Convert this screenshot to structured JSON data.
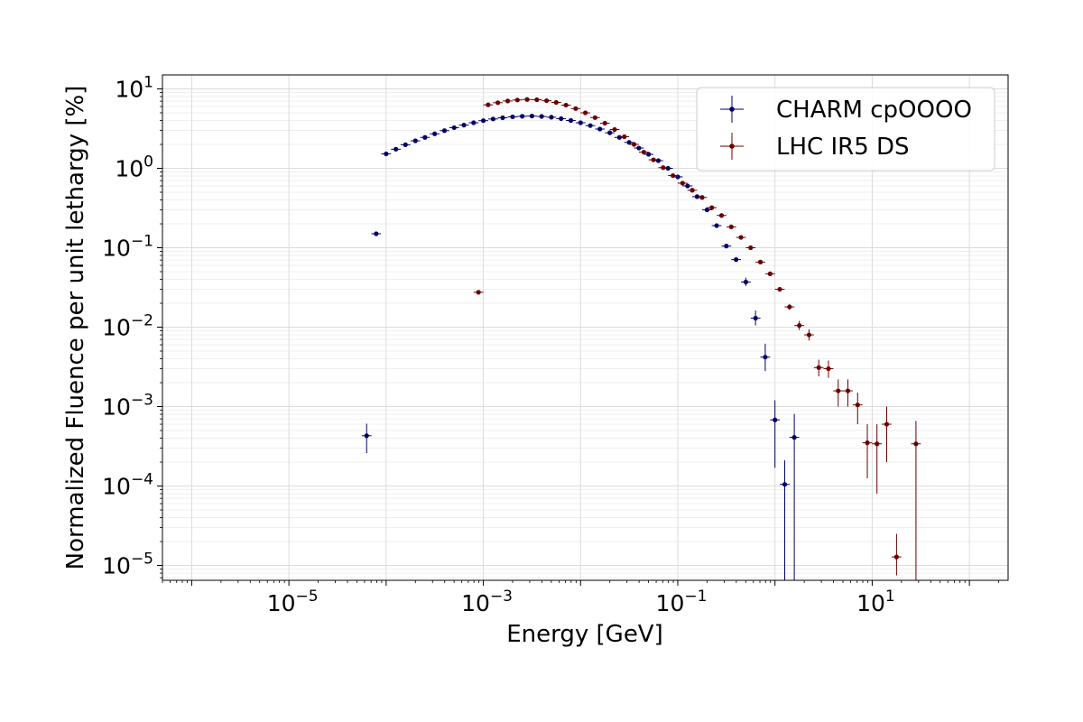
{
  "chart_data": {
    "type": "scatter",
    "title": "",
    "xlabel": "Energy [GeV]",
    "ylabel": "Normalized Fluence per unit lethargy [%]",
    "xscale": "log",
    "yscale": "log",
    "xlim": [
      5e-07,
      250
    ],
    "ylim": [
      6.5e-06,
      15
    ],
    "xticks": [
      {
        "value": 1e-05,
        "mantissa": "10",
        "exp": "−5"
      },
      {
        "value": 0.001,
        "mantissa": "10",
        "exp": "−3"
      },
      {
        "value": 0.1,
        "mantissa": "10",
        "exp": "−1"
      },
      {
        "value": 10,
        "mantissa": "10",
        "exp": "1"
      }
    ],
    "yticks": [
      {
        "value": 1e-05,
        "mantissa": "10",
        "exp": "−5"
      },
      {
        "value": 0.0001,
        "mantissa": "10",
        "exp": "−4"
      },
      {
        "value": 0.001,
        "mantissa": "10",
        "exp": "−3"
      },
      {
        "value": 0.01,
        "mantissa": "10",
        "exp": "−2"
      },
      {
        "value": 0.1,
        "mantissa": "10",
        "exp": "−1"
      },
      {
        "value": 1,
        "mantissa": "10",
        "exp": "0"
      },
      {
        "value": 10,
        "mantissa": "10",
        "exp": "1"
      }
    ],
    "grid": true,
    "legend_position": "top-right",
    "series": [
      {
        "name": "CHARM cpOOOO",
        "color": "#00006b",
        "points": [
          {
            "x": 6.3e-05,
            "y": 0.00043,
            "ylo": 0.00026,
            "yhi": 0.00061
          },
          {
            "x": 7.9e-05,
            "y": 0.15
          },
          {
            "x": 0.0001,
            "y": 1.52
          },
          {
            "x": 0.000126,
            "y": 1.74
          },
          {
            "x": 0.000158,
            "y": 1.98
          },
          {
            "x": 0.0002,
            "y": 2.22
          },
          {
            "x": 0.000251,
            "y": 2.45
          },
          {
            "x": 0.000316,
            "y": 2.72
          },
          {
            "x": 0.000398,
            "y": 2.98
          },
          {
            "x": 0.000501,
            "y": 3.25
          },
          {
            "x": 0.000631,
            "y": 3.5
          },
          {
            "x": 0.000794,
            "y": 3.75
          },
          {
            "x": 0.001,
            "y": 3.98
          },
          {
            "x": 0.00126,
            "y": 4.18
          },
          {
            "x": 0.00158,
            "y": 4.33
          },
          {
            "x": 0.002,
            "y": 4.45
          },
          {
            "x": 0.00251,
            "y": 4.52
          },
          {
            "x": 0.00316,
            "y": 4.55
          },
          {
            "x": 0.00398,
            "y": 4.5
          },
          {
            "x": 0.00501,
            "y": 4.4
          },
          {
            "x": 0.00631,
            "y": 4.22
          },
          {
            "x": 0.00794,
            "y": 4.0
          },
          {
            "x": 0.01,
            "y": 3.75
          },
          {
            "x": 0.0126,
            "y": 3.45
          },
          {
            "x": 0.0158,
            "y": 3.12
          },
          {
            "x": 0.02,
            "y": 2.8
          },
          {
            "x": 0.0251,
            "y": 2.45
          },
          {
            "x": 0.0316,
            "y": 2.12
          },
          {
            "x": 0.0398,
            "y": 1.8
          },
          {
            "x": 0.0501,
            "y": 1.5
          },
          {
            "x": 0.0631,
            "y": 1.25
          },
          {
            "x": 0.0794,
            "y": 1.0
          },
          {
            "x": 0.1,
            "y": 0.78
          },
          {
            "x": 0.126,
            "y": 0.6
          },
          {
            "x": 0.158,
            "y": 0.44
          },
          {
            "x": 0.2,
            "y": 0.3
          },
          {
            "x": 0.251,
            "y": 0.19
          },
          {
            "x": 0.316,
            "y": 0.105
          },
          {
            "x": 0.398,
            "y": 0.071
          },
          {
            "x": 0.501,
            "y": 0.037,
            "ylo": 0.033,
            "yhi": 0.042
          },
          {
            "x": 0.631,
            "y": 0.013,
            "ylo": 0.0105,
            "yhi": 0.0162
          },
          {
            "x": 0.794,
            "y": 0.0042,
            "ylo": 0.0028,
            "yhi": 0.0062
          },
          {
            "x": 1.0,
            "y": 0.00068,
            "ylo": 0.00017,
            "yhi": 0.0012
          },
          {
            "x": 1.26,
            "y": 0.000105,
            "ylo": 6.5e-06,
            "yhi": 0.00021
          },
          {
            "x": 1.58,
            "y": 0.00041,
            "ylo": 6.5e-06,
            "yhi": 0.00081
          }
        ]
      },
      {
        "name": "LHC IR5 DS",
        "color": "#6b0000",
        "points": [
          {
            "x": 0.000891,
            "y": 0.0275
          },
          {
            "x": 0.00112,
            "y": 6.3
          },
          {
            "x": 0.00141,
            "y": 6.7
          },
          {
            "x": 0.00178,
            "y": 7.05
          },
          {
            "x": 0.00224,
            "y": 7.25
          },
          {
            "x": 0.00282,
            "y": 7.35
          },
          {
            "x": 0.00355,
            "y": 7.3
          },
          {
            "x": 0.00447,
            "y": 7.1
          },
          {
            "x": 0.00562,
            "y": 6.75
          },
          {
            "x": 0.00708,
            "y": 6.25
          },
          {
            "x": 0.00891,
            "y": 5.65
          },
          {
            "x": 0.0112,
            "y": 5.0
          },
          {
            "x": 0.0141,
            "y": 4.35
          },
          {
            "x": 0.0178,
            "y": 3.7
          },
          {
            "x": 0.0224,
            "y": 3.08
          },
          {
            "x": 0.0282,
            "y": 2.5
          },
          {
            "x": 0.0355,
            "y": 2.0
          },
          {
            "x": 0.0447,
            "y": 1.6
          },
          {
            "x": 0.0562,
            "y": 1.28
          },
          {
            "x": 0.0708,
            "y": 1.02
          },
          {
            "x": 0.0891,
            "y": 0.81
          },
          {
            "x": 0.112,
            "y": 0.65
          },
          {
            "x": 0.141,
            "y": 0.53
          },
          {
            "x": 0.178,
            "y": 0.43
          },
          {
            "x": 0.224,
            "y": 0.32
          },
          {
            "x": 0.282,
            "y": 0.255
          },
          {
            "x": 0.355,
            "y": 0.183
          },
          {
            "x": 0.447,
            "y": 0.135
          },
          {
            "x": 0.562,
            "y": 0.1
          },
          {
            "x": 0.708,
            "y": 0.066
          },
          {
            "x": 0.891,
            "y": 0.047
          },
          {
            "x": 1.12,
            "y": 0.03
          },
          {
            "x": 1.41,
            "y": 0.018,
            "ylo": 0.0165,
            "yhi": 0.0196
          },
          {
            "x": 1.78,
            "y": 0.0105,
            "ylo": 0.0092,
            "yhi": 0.012
          },
          {
            "x": 2.24,
            "y": 0.008,
            "ylo": 0.0068,
            "yhi": 0.0094
          },
          {
            "x": 2.82,
            "y": 0.0031,
            "ylo": 0.0024,
            "yhi": 0.0039
          },
          {
            "x": 3.55,
            "y": 0.003,
            "ylo": 0.0023,
            "yhi": 0.0038
          },
          {
            "x": 4.47,
            "y": 0.00158,
            "ylo": 0.001,
            "yhi": 0.0022
          },
          {
            "x": 5.62,
            "y": 0.00158,
            "ylo": 0.001,
            "yhi": 0.0022
          },
          {
            "x": 7.08,
            "y": 0.00105,
            "ylo": 0.0006,
            "yhi": 0.0015
          },
          {
            "x": 8.91,
            "y": 0.00035,
            "ylo": 0.000125,
            "yhi": 0.0006
          },
          {
            "x": 11.2,
            "y": 0.00034,
            "ylo": 8e-05,
            "yhi": 0.0006
          },
          {
            "x": 14.1,
            "y": 0.0006,
            "ylo": 0.0002,
            "yhi": 0.001
          },
          {
            "x": 17.8,
            "y": 1.28e-05,
            "ylo": 7.5e-06,
            "yhi": 2.5e-05
          },
          {
            "x": 28.2,
            "y": 0.00034,
            "ylo": 6.5e-06,
            "yhi": 0.00066
          }
        ]
      }
    ]
  }
}
